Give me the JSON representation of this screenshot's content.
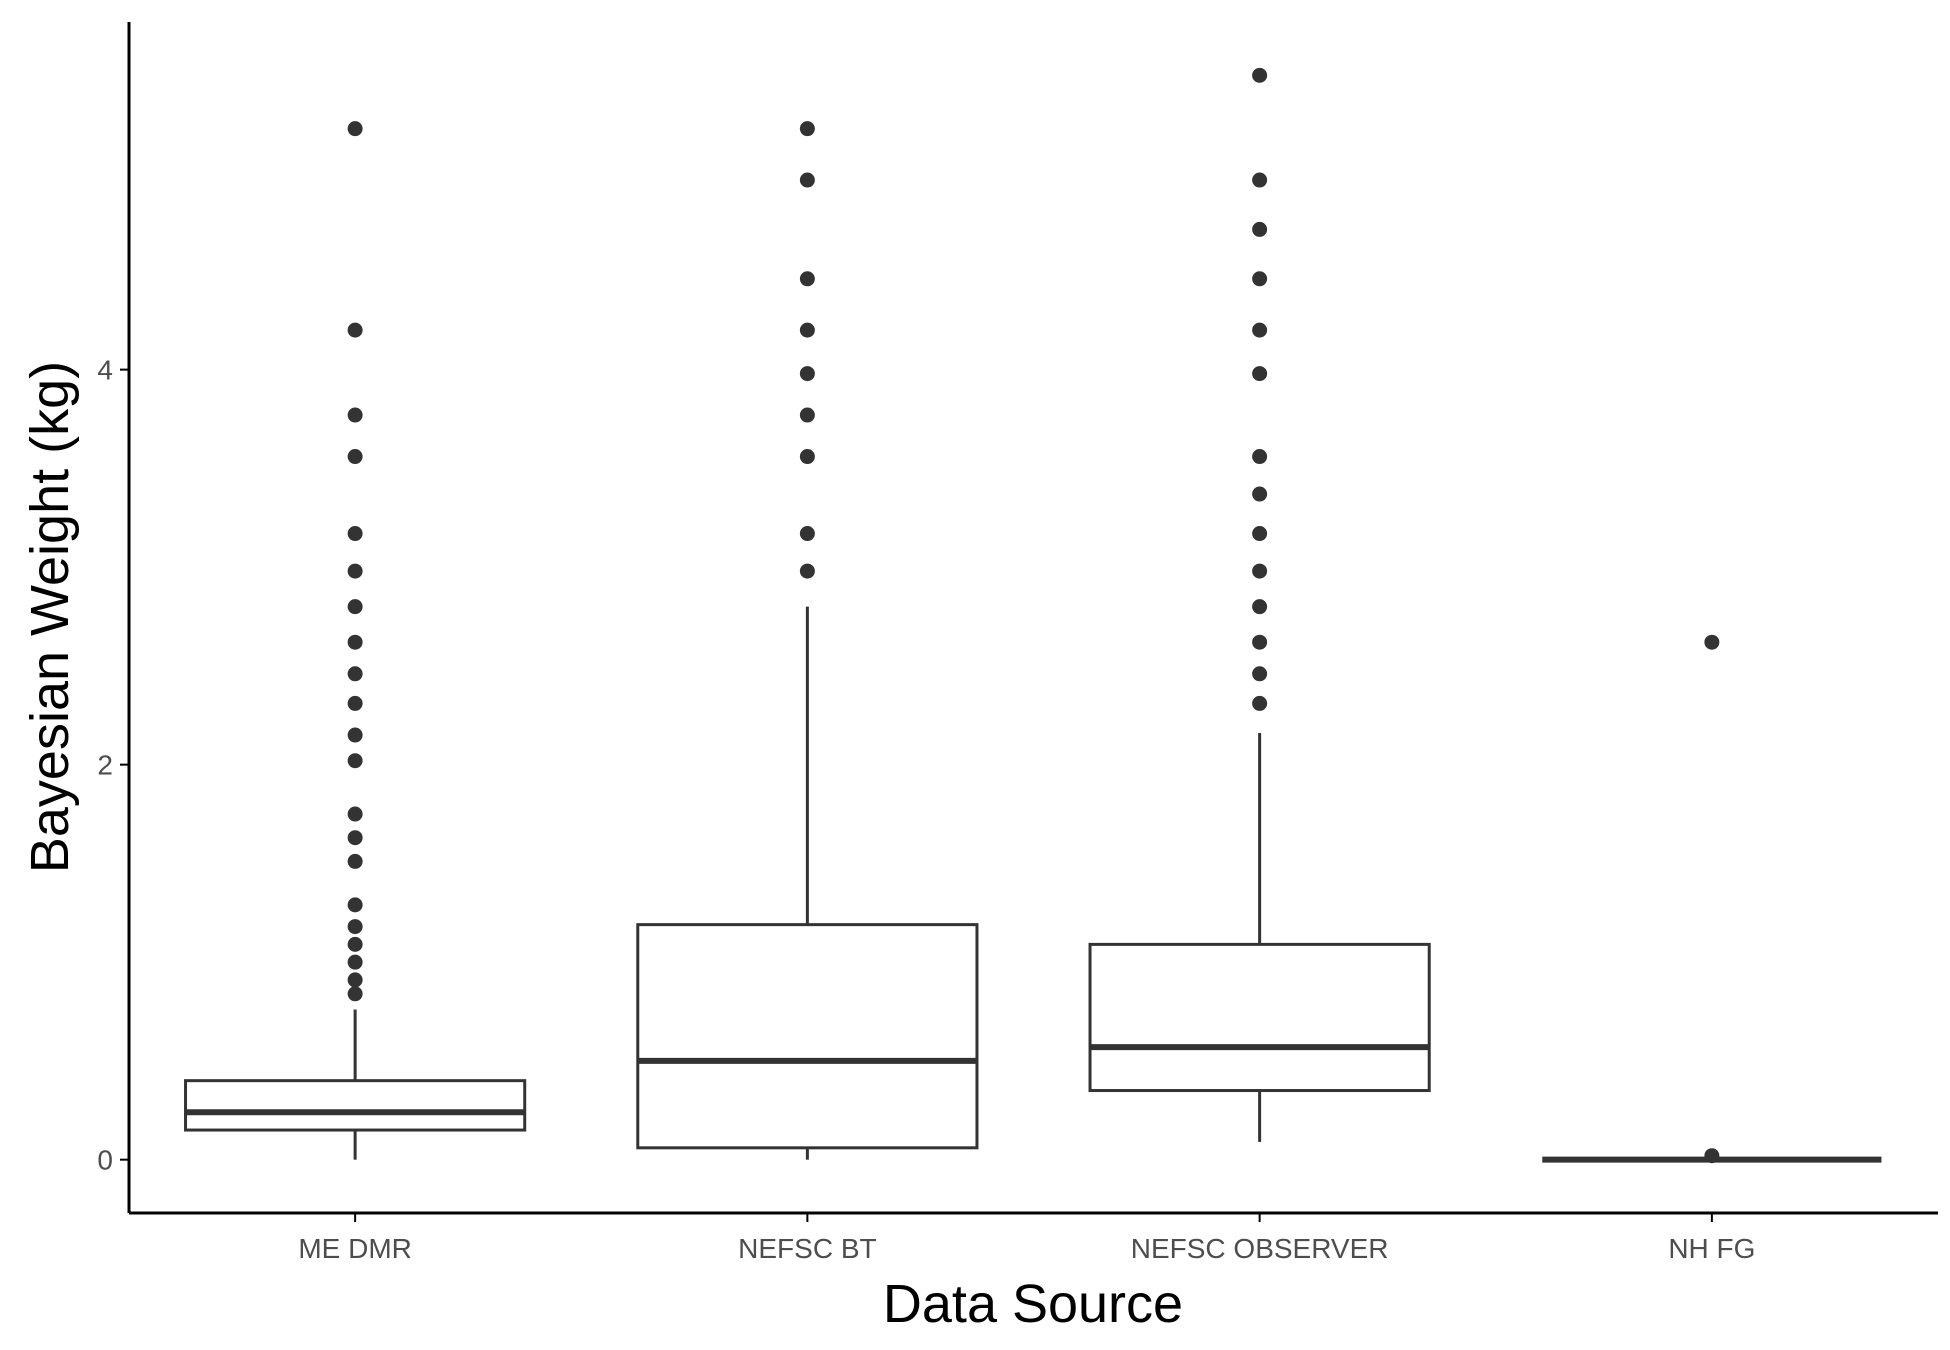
{
  "chart_data": {
    "type": "box",
    "title": "",
    "xlabel": "Data Source",
    "ylabel": "Bayesian Weight (kg)",
    "categories": [
      "ME DMR",
      "NEFSC BT",
      "NEFSC OBSERVER",
      "NH FG"
    ],
    "ylim": [
      -0.27,
      5.76
    ],
    "y_ticks": [
      0,
      2,
      4
    ],
    "y_tick_labels": [
      "0",
      "2",
      "4"
    ],
    "grid": false,
    "legend": "none",
    "boxes": [
      {
        "category": "ME DMR",
        "whisker_low": 0.0,
        "q1": 0.15,
        "median": 0.24,
        "q3": 0.4,
        "whisker_high": 0.76,
        "outliers": [
          5.22,
          4.2,
          3.77,
          3.56,
          3.17,
          2.98,
          2.8,
          2.62,
          2.46,
          2.31,
          2.15,
          2.02,
          1.75,
          1.63,
          1.51,
          1.29,
          1.18,
          1.09,
          1.0,
          0.91,
          0.84
        ]
      },
      {
        "category": "NEFSC BT",
        "whisker_low": 0.0,
        "q1": 0.06,
        "median": 0.5,
        "q3": 1.19,
        "whisker_high": 2.8,
        "outliers": [
          5.22,
          4.96,
          4.46,
          4.2,
          3.98,
          3.77,
          3.56,
          3.17,
          2.98
        ]
      },
      {
        "category": "NEFSC OBSERVER",
        "whisker_low": 0.09,
        "q1": 0.35,
        "median": 0.57,
        "q3": 1.09,
        "whisker_high": 2.16,
        "outliers": [
          5.49,
          4.96,
          4.71,
          4.46,
          4.2,
          3.98,
          3.56,
          3.37,
          3.17,
          2.98,
          2.8,
          2.62,
          2.46,
          2.31
        ]
      },
      {
        "category": "NH FG",
        "whisker_low": 0.0,
        "q1": 0.0,
        "median": 0.0,
        "q3": 0.0,
        "whisker_high": 0.0,
        "outliers": [
          2.62,
          0.02
        ]
      }
    ],
    "colors": {
      "box_stroke": "#333333",
      "box_fill": "#ffffff",
      "point": "#333333",
      "axis": "#000000",
      "tick_text": "#4d4d4d",
      "title_text": "#000000"
    }
  }
}
